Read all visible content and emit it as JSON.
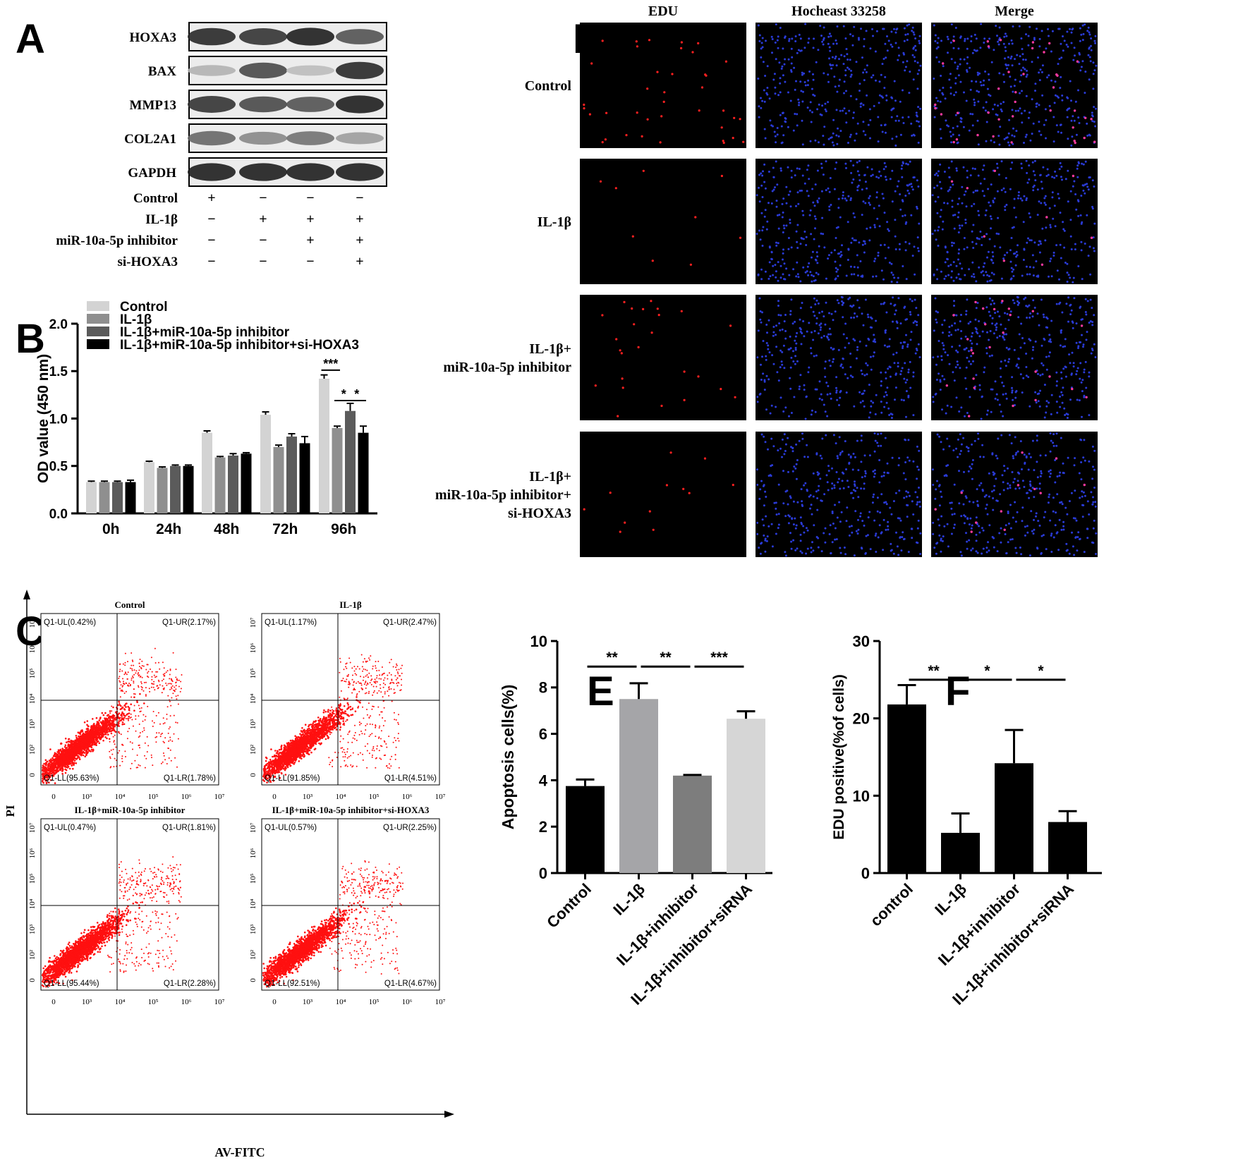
{
  "panel_labels": {
    "A": "A",
    "B": "B",
    "C": "C",
    "D": "D",
    "E": "E",
    "F": "F"
  },
  "colors": {
    "dot_red": "#ff2020",
    "nucleus_blue": "#2a3bd6"
  },
  "chart_data": [
    {
      "panel": "A",
      "type": "table",
      "bands": [
        "HOXA3",
        "BAX",
        "MMP13",
        "COL2A1",
        "GAPDH"
      ],
      "band_intensity": [
        [
          0.9,
          0.85,
          0.95,
          0.7
        ],
        [
          0.25,
          0.75,
          0.2,
          0.9
        ],
        [
          0.85,
          0.75,
          0.7,
          0.95
        ],
        [
          0.6,
          0.45,
          0.55,
          0.35
        ],
        [
          0.95,
          0.95,
          0.95,
          0.95
        ]
      ],
      "conditions": [
        {
          "name": "Control",
          "marks": [
            "+",
            "−",
            "−",
            "−"
          ]
        },
        {
          "name": "IL-1β",
          "marks": [
            "−",
            "+",
            "+",
            "+"
          ]
        },
        {
          "name": "miR-10a-5p inhibitor",
          "marks": [
            "−",
            "−",
            "+",
            "+"
          ]
        },
        {
          "name": "si-HOXA3",
          "marks": [
            "−",
            "−",
            "−",
            "+"
          ]
        }
      ]
    },
    {
      "panel": "B",
      "type": "bar",
      "categories": [
        "0h",
        "24h",
        "48h",
        "72h",
        "96h"
      ],
      "series": [
        {
          "name": "Control",
          "color": "#d3d3d3",
          "values": [
            0.33,
            0.54,
            0.85,
            1.04,
            1.42
          ],
          "errors": [
            0.01,
            0.01,
            0.02,
            0.03,
            0.04
          ]
        },
        {
          "name": "IL-1β",
          "color": "#8f8f8f",
          "values": [
            0.33,
            0.48,
            0.59,
            0.7,
            0.9
          ],
          "errors": [
            0.01,
            0.01,
            0.01,
            0.02,
            0.02
          ]
        },
        {
          "name": "IL-1β+miR-10a-5p inhibitor",
          "color": "#5b5b5b",
          "values": [
            0.33,
            0.5,
            0.61,
            0.81,
            1.08
          ],
          "errors": [
            0.01,
            0.01,
            0.02,
            0.03,
            0.08
          ]
        },
        {
          "name": "IL-1β+miR-10a-5p inhibitor+si-HOXA3",
          "color": "#000000",
          "values": [
            0.33,
            0.5,
            0.63,
            0.74,
            0.85
          ],
          "errors": [
            0.02,
            0.01,
            0.01,
            0.07,
            0.07
          ]
        }
      ],
      "ylabel": "OD value (450 nm)",
      "ylim": [
        0,
        2.0
      ],
      "yticks": [
        "0.0",
        "0.5",
        "1.0",
        "1.5",
        "2.0"
      ],
      "significance": [
        {
          "category": 4,
          "from": 0,
          "to": 1,
          "label": "***",
          "y": 1.51
        },
        {
          "category": 4,
          "from": 1,
          "to": 2,
          "label": "*",
          "y": 1.19
        },
        {
          "category": 4,
          "from": 2,
          "to": 3,
          "label": "*",
          "y": 1.19
        }
      ]
    },
    {
      "panel": "C",
      "type": "scatter",
      "xlabel": "AV-FITC",
      "ylabel": "PI",
      "x_scale": "log",
      "y_scale": "log",
      "x_ticks": [
        "0",
        "10³",
        "10⁴",
        "10⁵",
        "10⁶",
        "10⁷"
      ],
      "y_ticks": [
        "0",
        "10²",
        "10³",
        "10⁴",
        "10⁵",
        "10⁶",
        "10⁷"
      ],
      "plots": [
        {
          "title": "Control",
          "UL": "Q1-UL(0.42%)",
          "UR": "Q1-UR(2.17%)",
          "LL": "Q1-LL(95.63%)",
          "LR": "Q1-LR(1.78%)"
        },
        {
          "title": "IL-1β",
          "UL": "Q1-UL(1.17%)",
          "UR": "Q1-UR(2.47%)",
          "LL": "Q1-LL(91.85%)",
          "LR": "Q1-LR(4.51%)"
        },
        {
          "title": "IL-1β+miR-10a-5p inhibitor",
          "UL": "Q1-UL(0.47%)",
          "UR": "Q1-UR(1.81%)",
          "LL": "Q1-LL(95.44%)",
          "LR": "Q1-LR(2.28%)"
        },
        {
          "title": "IL-1β+miR-10a-5p inhibitor+si-HOXA3",
          "UL": "Q1-UL(0.57%)",
          "UR": "Q1-UR(2.25%)",
          "LL": "Q1-LL(92.51%)",
          "LR": "Q1-LR(4.67%)"
        }
      ]
    },
    {
      "panel": "D",
      "type": "table",
      "columns": [
        "EDU",
        "Hocheast 33258",
        "Merge"
      ],
      "rows": [
        "Control",
        "IL-1β",
        "IL-1β+\nmiR-10a-5p inhibitor",
        "IL-1β+\nmiR-10a-5p inhibitor+\nsi-HOXA3"
      ],
      "edu_cell_density": [
        0.2168,
        0.0508,
        0.1406,
        0.0654
      ]
    },
    {
      "panel": "E",
      "type": "bar",
      "categories": [
        "Control",
        "IL-1β",
        "IL-1β+inhibitor",
        "IL-1β+inhibitor+siRNA"
      ],
      "values": [
        3.75,
        7.5,
        4.2,
        6.65
      ],
      "errors": [
        0.28,
        0.68,
        0.03,
        0.32
      ],
      "colors": [
        "#000000",
        "#a5a5a8",
        "#7d7d7d",
        "#d6d6d6"
      ],
      "ylabel": "Apoptosis cells(%)",
      "ylim": [
        0,
        10
      ],
      "yticks": [
        "0",
        "2",
        "4",
        "6",
        "8",
        "10"
      ],
      "significance": [
        {
          "from": 0,
          "to": 1,
          "label": "**",
          "y": 8.9
        },
        {
          "from": 1,
          "to": 2,
          "label": "**",
          "y": 8.9
        },
        {
          "from": 2,
          "to": 3,
          "label": "***",
          "y": 8.9
        }
      ]
    },
    {
      "panel": "F",
      "type": "bar",
      "categories": [
        "control",
        "IL-1β",
        "IL-1β+inhibitor",
        "IL-1β+inhibitor+siRNA"
      ],
      "values": [
        21.8,
        5.2,
        14.2,
        6.6
      ],
      "errors": [
        2.5,
        2.5,
        4.3,
        1.4
      ],
      "colors": [
        "#000000",
        "#000000",
        "#000000",
        "#000000"
      ],
      "ylabel": "EDU positive(%of cells)",
      "ylim": [
        0,
        30
      ],
      "yticks": [
        "0",
        "10",
        "20",
        "30"
      ],
      "significance": [
        {
          "from": 0,
          "to": 1,
          "label": "**",
          "y": 25.0
        },
        {
          "from": 1,
          "to": 2,
          "label": "*",
          "y": 25.0
        },
        {
          "from": 2,
          "to": 3,
          "label": "*",
          "y": 25.0
        }
      ]
    }
  ]
}
